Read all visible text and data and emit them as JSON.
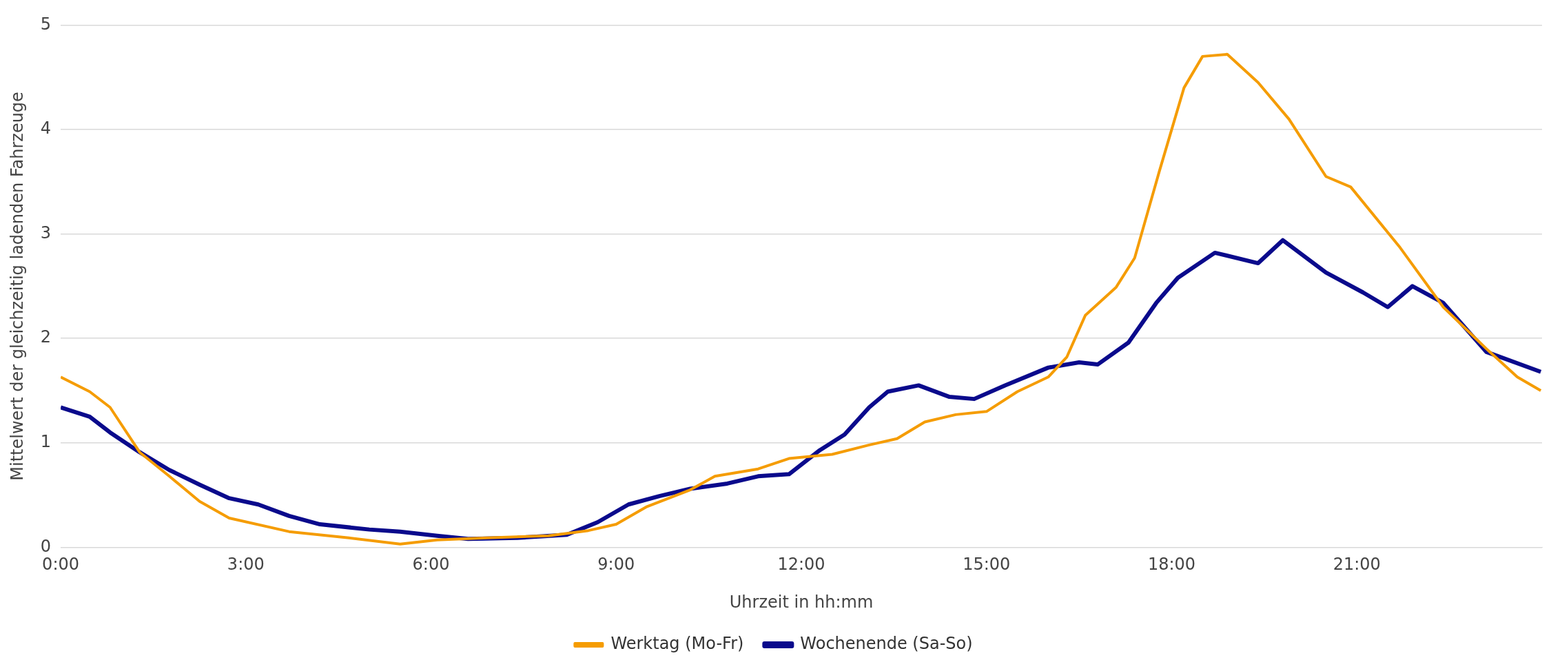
{
  "chart_data": {
    "type": "line",
    "xlabel": "Uhrzeit in hh:mm",
    "ylabel": "Mittelwert der gleichzeitig ladenden Fahrzeuge",
    "xlim": [
      0,
      24
    ],
    "xticks": [
      {
        "value": 0,
        "label": "0:00"
      },
      {
        "value": 3,
        "label": "3:00"
      },
      {
        "value": 6,
        "label": "6:00"
      },
      {
        "value": 9,
        "label": "9:00"
      },
      {
        "value": 12,
        "label": "12:00"
      },
      {
        "value": 15,
        "label": "15:00"
      },
      {
        "value": 18,
        "label": "18:00"
      },
      {
        "value": 21,
        "label": "21:00"
      }
    ],
    "ylim": [
      0,
      5
    ],
    "yticks": [
      0,
      1,
      2,
      3,
      4,
      5
    ],
    "grid": "y",
    "legend": "bottom",
    "marker": "none",
    "line_style": "solid",
    "series": [
      {
        "name": "Werktag (Mo-Fr)",
        "color": "#f59c00",
        "x": [
          0,
          0.47,
          0.8,
          1.28,
          1.76,
          2.25,
          2.73,
          3.7,
          4.67,
          5.5,
          6.1,
          6.9,
          7.9,
          8.55,
          9.0,
          9.5,
          10.2,
          10.6,
          11.3,
          11.8,
          12.5,
          13.1,
          13.55,
          14.0,
          14.5,
          15.0,
          15.5,
          16.0,
          16.3,
          16.6,
          17.1,
          17.4,
          17.8,
          18.2,
          18.5,
          18.9,
          19.4,
          19.9,
          20.5,
          20.9,
          21.7,
          22.4,
          23.1,
          23.6,
          23.98
        ],
        "values": [
          1.63,
          1.49,
          1.34,
          0.91,
          0.68,
          0.44,
          0.28,
          0.15,
          0.09,
          0.03,
          0.07,
          0.09,
          0.11,
          0.16,
          0.22,
          0.39,
          0.55,
          0.68,
          0.75,
          0.85,
          0.89,
          0.98,
          1.04,
          1.2,
          1.27,
          1.3,
          1.49,
          1.63,
          1.82,
          2.22,
          2.49,
          2.77,
          3.6,
          4.4,
          4.7,
          4.72,
          4.45,
          4.1,
          3.55,
          3.45,
          2.87,
          2.3,
          1.9,
          1.63,
          1.5
        ]
      },
      {
        "name": "Wochenende (Sa-So)",
        "color": "#0a0a8c",
        "x": [
          0,
          0.47,
          0.8,
          1.28,
          1.76,
          2.25,
          2.73,
          3.2,
          3.7,
          4.2,
          5.0,
          5.5,
          6.1,
          6.6,
          7.4,
          8.2,
          8.7,
          9.2,
          9.7,
          10.2,
          10.8,
          11.3,
          11.8,
          12.3,
          12.7,
          13.1,
          13.4,
          13.9,
          14.4,
          14.8,
          15.3,
          16.0,
          16.5,
          16.8,
          17.3,
          17.75,
          18.1,
          18.7,
          19.4,
          19.8,
          20.5,
          21.1,
          21.5,
          21.9,
          22.4,
          23.1,
          23.98
        ],
        "values": [
          1.34,
          1.25,
          1.1,
          0.91,
          0.74,
          0.6,
          0.47,
          0.41,
          0.3,
          0.22,
          0.17,
          0.15,
          0.11,
          0.08,
          0.09,
          0.12,
          0.24,
          0.41,
          0.49,
          0.56,
          0.61,
          0.68,
          0.7,
          0.93,
          1.08,
          1.34,
          1.49,
          1.55,
          1.44,
          1.42,
          1.55,
          1.72,
          1.77,
          1.75,
          1.96,
          2.34,
          2.58,
          2.82,
          2.72,
          2.94,
          2.63,
          2.44,
          2.3,
          2.5,
          2.34,
          1.87,
          1.68
        ]
      }
    ]
  }
}
